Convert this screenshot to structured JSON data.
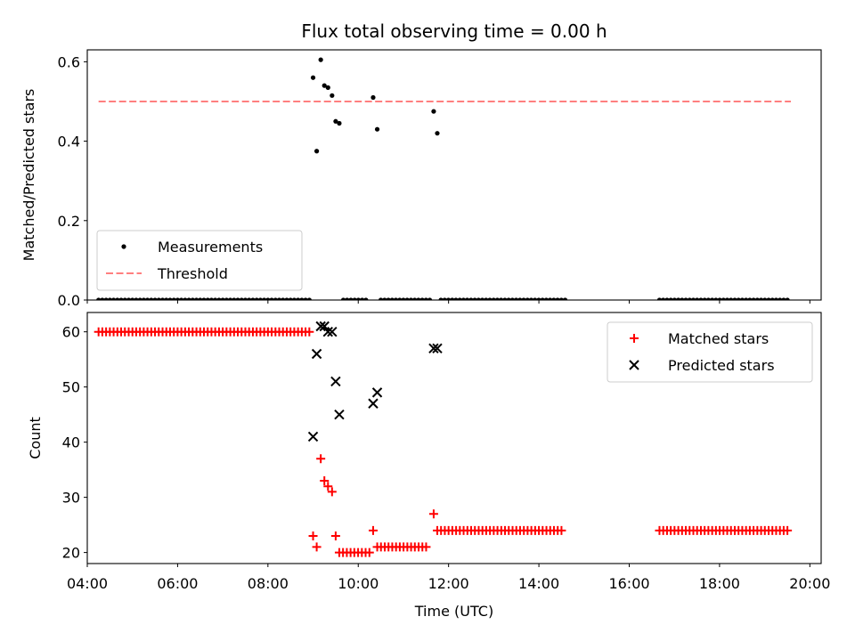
{
  "chart_data": [
    {
      "type": "scatter",
      "title": "Flux total observing time = 0.00 h",
      "xlabel": "",
      "ylabel": "Matched/Predicted stars",
      "ylim": [
        0,
        0.63
      ],
      "xlim": [
        4.0,
        20.25
      ],
      "xunit": "hours UTC",
      "yticks": [
        {
          "v": 0.0,
          "label": "0.0"
        },
        {
          "v": 0.2,
          "label": "0.2"
        },
        {
          "v": 0.4,
          "label": "0.4"
        },
        {
          "v": 0.6,
          "label": "0.6"
        }
      ],
      "legend": {
        "placement": "lower-left"
      },
      "series": [
        {
          "name": "Measurements",
          "kind": "scatter",
          "color": "#000000",
          "marker": "dot",
          "points": [
            [
              9.0,
              0.56
            ],
            [
              9.08,
              0.375
            ],
            [
              9.17,
              0.605
            ],
            [
              9.25,
              0.54
            ],
            [
              9.33,
              0.535
            ],
            [
              9.42,
              0.515
            ],
            [
              9.5,
              0.45
            ],
            [
              9.58,
              0.445
            ],
            [
              10.33,
              0.51
            ],
            [
              10.42,
              0.43
            ],
            [
              11.67,
              0.475
            ],
            [
              11.75,
              0.42
            ]
          ],
          "zero_ranges": [
            [
              4.25,
              8.92
            ],
            [
              9.67,
              10.25
            ],
            [
              10.5,
              11.6
            ],
            [
              11.83,
              14.58
            ],
            [
              16.67,
              19.58
            ]
          ],
          "zero_value": 0
        },
        {
          "name": "Threshold",
          "kind": "line",
          "color": "#ff7f7f",
          "dashed": true,
          "x": [
            4.25,
            19.58
          ],
          "y": [
            0.5,
            0.5
          ]
        }
      ]
    },
    {
      "type": "scatter",
      "title": "",
      "xlabel": "Time (UTC)",
      "ylabel": "Count",
      "ylim": [
        18,
        63.5
      ],
      "xlim": [
        4.0,
        20.25
      ],
      "xunit": "hours UTC",
      "yticks": [
        {
          "v": 20,
          "label": "20"
        },
        {
          "v": 30,
          "label": "30"
        },
        {
          "v": 40,
          "label": "40"
        },
        {
          "v": 50,
          "label": "50"
        },
        {
          "v": 60,
          "label": "60"
        }
      ],
      "xticks": [
        {
          "v": 4,
          "label": "04:00"
        },
        {
          "v": 6,
          "label": "06:00"
        },
        {
          "v": 8,
          "label": "08:00"
        },
        {
          "v": 10,
          "label": "10:00"
        },
        {
          "v": 12,
          "label": "12:00"
        },
        {
          "v": 14,
          "label": "14:00"
        },
        {
          "v": 16,
          "label": "16:00"
        },
        {
          "v": 18,
          "label": "18:00"
        },
        {
          "v": 20,
          "label": "20:00"
        }
      ],
      "legend": {
        "placement": "top-right"
      },
      "series": [
        {
          "name": "Matched stars",
          "kind": "scatter",
          "color": "#ff0000",
          "marker": "plus",
          "points": [
            [
              9.0,
              23
            ],
            [
              9.08,
              21
            ],
            [
              9.17,
              37
            ],
            [
              9.25,
              33
            ],
            [
              9.33,
              32
            ],
            [
              9.42,
              31
            ],
            [
              9.5,
              23
            ],
            [
              10.33,
              24
            ],
            [
              11.67,
              27
            ]
          ],
          "constant_ranges": [
            {
              "range": [
                4.25,
                8.92
              ],
              "value": 60
            },
            {
              "range": [
                9.58,
                10.25
              ],
              "value": 20
            },
            {
              "range": [
                10.42,
                11.58
              ],
              "value": 21
            },
            {
              "range": [
                11.75,
                14.58
              ],
              "value": 24
            },
            {
              "range": [
                16.67,
                19.58
              ],
              "value": 24
            }
          ]
        },
        {
          "name": "Predicted stars",
          "kind": "scatter",
          "color": "#000000",
          "marker": "x",
          "points": [
            [
              9.0,
              41
            ],
            [
              9.08,
              56
            ],
            [
              9.17,
              61
            ],
            [
              9.25,
              61
            ],
            [
              9.33,
              60
            ],
            [
              9.42,
              60
            ],
            [
              9.5,
              51
            ],
            [
              9.58,
              45
            ],
            [
              10.33,
              47
            ],
            [
              10.42,
              49
            ],
            [
              11.67,
              57
            ],
            [
              11.75,
              57
            ]
          ]
        }
      ]
    }
  ]
}
